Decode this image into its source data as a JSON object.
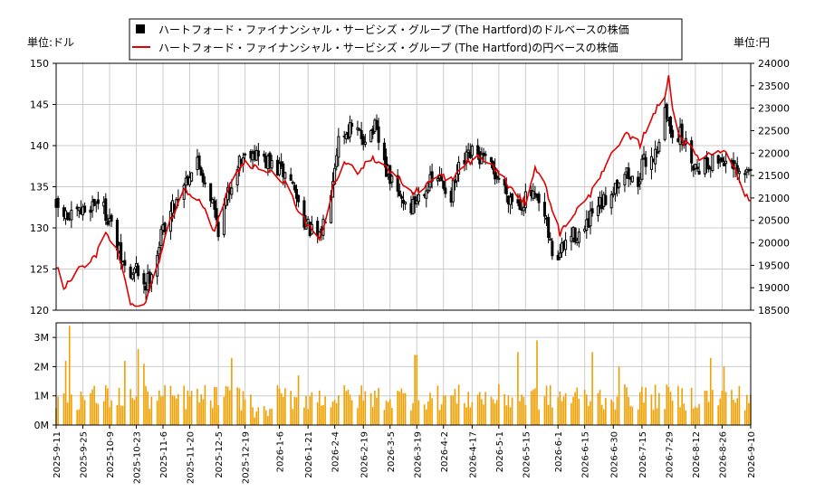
{
  "legend": [
    {
      "label": "ハートフォード・ファイナンシャル・サービシズ・グループ (The Hartford)のドルベースの株価",
      "color": "#000000",
      "marker": "square"
    },
    {
      "label": "ハートフォード・ファイナンシャル・サービシズ・グループ (The Hartford)の円ベースの株価",
      "color": "#e00000",
      "marker": "line"
    }
  ],
  "chart_data": [
    {
      "type": "candlestick+line",
      "left_unit_label": "単位:ドル",
      "right_unit_label": "単位:円",
      "y_left_range": [
        120,
        150
      ],
      "y_left_ticks": [
        120,
        125,
        130,
        135,
        140,
        145,
        150
      ],
      "y_right_range": [
        18500,
        24000
      ],
      "y_right_ticks": [
        18500,
        19000,
        19500,
        20000,
        20500,
        21000,
        21500,
        22000,
        22500,
        23000,
        23500,
        24000
      ],
      "grid": true,
      "usd_anchors": [
        [
          "2025-09-11",
          132.5
        ],
        [
          "2025-09-18",
          131.0
        ],
        [
          "2025-09-25",
          132.0
        ],
        [
          "2025-10-03",
          133.5
        ],
        [
          "2025-10-09",
          131.0
        ],
        [
          "2025-10-15",
          126.0
        ],
        [
          "2025-10-20",
          124.0
        ],
        [
          "2025-10-23",
          125.0
        ],
        [
          "2025-10-28",
          123.0
        ],
        [
          "2025-11-03",
          127.0
        ],
        [
          "2025-11-06",
          130.0
        ],
        [
          "2025-11-12",
          133.0
        ],
        [
          "2025-11-18",
          136.0
        ],
        [
          "2025-11-24",
          138.0
        ],
        [
          "2025-12-01",
          134.0
        ],
        [
          "2025-12-05",
          130.0
        ],
        [
          "2025-12-10",
          134.0
        ],
        [
          "2025-12-15",
          138.0
        ],
        [
          "2025-12-22",
          139.5
        ],
        [
          "2025-12-30",
          138.0
        ],
        [
          "2026-01-06",
          137.0
        ],
        [
          "2026-01-12",
          136.0
        ],
        [
          "2026-01-16",
          133.0
        ],
        [
          "2026-01-21",
          130.0
        ],
        [
          "2026-01-27",
          128.5
        ],
        [
          "2026-02-02",
          135.0
        ],
        [
          "2026-02-06",
          141.0
        ],
        [
          "2026-02-12",
          142.0
        ],
        [
          "2026-02-19",
          141.0
        ],
        [
          "2026-02-25",
          142.0
        ],
        [
          "2026-03-03",
          137.0
        ],
        [
          "2026-03-09",
          134.0
        ],
        [
          "2026-03-16",
          132.5
        ],
        [
          "2026-03-23",
          135.0
        ],
        [
          "2026-03-30",
          136.0
        ],
        [
          "2026-04-06",
          134.0
        ],
        [
          "2026-04-10",
          137.0
        ],
        [
          "2026-04-17",
          139.0
        ],
        [
          "2026-04-24",
          138.0
        ],
        [
          "2026-05-01",
          136.0
        ],
        [
          "2026-05-06",
          134.0
        ],
        [
          "2026-05-12",
          133.0
        ],
        [
          "2026-05-18",
          134.0
        ],
        [
          "2026-05-24",
          132.0
        ],
        [
          "2026-05-29",
          127.0
        ],
        [
          "2026-06-01",
          126.5
        ],
        [
          "2026-06-07",
          129.0
        ],
        [
          "2026-06-15",
          129.5
        ],
        [
          "2026-06-20",
          132.0
        ],
        [
          "2026-06-25",
          133.0
        ],
        [
          "2026-06-30",
          135.0
        ],
        [
          "2026-07-06",
          137.0
        ],
        [
          "2026-07-12",
          135.0
        ],
        [
          "2026-07-16",
          138.0
        ],
        [
          "2026-07-22",
          139.0
        ],
        [
          "2026-07-27",
          144.0
        ],
        [
          "2026-07-30",
          142.0
        ],
        [
          "2026-08-05",
          141.0
        ],
        [
          "2026-08-12",
          137.5
        ],
        [
          "2026-08-20",
          138.0
        ],
        [
          "2026-08-26",
          138.5
        ],
        [
          "2026-09-01",
          137.0
        ],
        [
          "2026-09-06",
          136.0
        ],
        [
          "2026-09-10",
          137.5
        ]
      ],
      "jpy_anchors": [
        [
          "2025-09-11",
          19500
        ],
        [
          "2025-09-15",
          19000
        ],
        [
          "2025-09-20",
          19300
        ],
        [
          "2025-10-01",
          19650
        ],
        [
          "2025-10-07",
          20200
        ],
        [
          "2025-10-13",
          19900
        ],
        [
          "2025-10-20",
          18600
        ],
        [
          "2025-10-28",
          18700
        ],
        [
          "2025-11-03",
          19500
        ],
        [
          "2025-11-10",
          20500
        ],
        [
          "2025-11-17",
          21200
        ],
        [
          "2025-11-25",
          21000
        ],
        [
          "2025-12-03",
          20200
        ],
        [
          "2025-12-10",
          21200
        ],
        [
          "2025-12-18",
          21800
        ],
        [
          "2025-12-30",
          21600
        ],
        [
          "2026-01-08",
          21400
        ],
        [
          "2026-01-16",
          20700
        ],
        [
          "2026-01-27",
          20000
        ],
        [
          "2026-02-03",
          21200
        ],
        [
          "2026-02-09",
          21800
        ],
        [
          "2026-02-16",
          21600
        ],
        [
          "2026-02-23",
          21900
        ],
        [
          "2026-03-03",
          21700
        ],
        [
          "2026-03-10",
          21400
        ],
        [
          "2026-03-17",
          21100
        ],
        [
          "2026-03-24",
          21300
        ],
        [
          "2026-03-31",
          21500
        ],
        [
          "2026-04-07",
          21400
        ],
        [
          "2026-04-14",
          21800
        ],
        [
          "2026-04-21",
          21900
        ],
        [
          "2026-04-28",
          21700
        ],
        [
          "2026-05-04",
          21400
        ],
        [
          "2026-05-11",
          21000
        ],
        [
          "2026-05-15",
          20900
        ],
        [
          "2026-05-20",
          21700
        ],
        [
          "2026-05-26",
          21200
        ],
        [
          "2026-06-02",
          20200
        ],
        [
          "2026-06-10",
          20700
        ],
        [
          "2026-06-17",
          21000
        ],
        [
          "2026-06-24",
          21600
        ],
        [
          "2026-06-30",
          22000
        ],
        [
          "2026-07-07",
          22400
        ],
        [
          "2026-07-14",
          22200
        ],
        [
          "2026-07-21",
          22900
        ],
        [
          "2026-07-27",
          23200
        ],
        [
          "2026-07-29",
          23800
        ],
        [
          "2026-08-01",
          22600
        ],
        [
          "2026-08-07",
          22200
        ],
        [
          "2026-08-14",
          21900
        ],
        [
          "2026-08-21",
          22000
        ],
        [
          "2026-08-28",
          22100
        ],
        [
          "2026-09-03",
          21500
        ],
        [
          "2026-09-08",
          21000
        ],
        [
          "2026-09-10",
          20900
        ]
      ],
      "volume": {
        "y_range": [
          0,
          3500000
        ],
        "y_ticks": [
          {
            "value": 0,
            "label": "0M"
          },
          {
            "value": 1000000,
            "label": "1M"
          },
          {
            "value": 2000000,
            "label": "2M"
          },
          {
            "value": 3000000,
            "label": "3M"
          }
        ],
        "bar_color": "#f0a000",
        "spikes": [
          [
            "2025-09-18",
            3400000
          ],
          [
            "2025-09-16",
            2200000
          ],
          [
            "2025-10-17",
            2200000
          ],
          [
            "2025-10-24",
            2600000
          ],
          [
            "2025-10-27",
            2100000
          ],
          [
            "2025-12-12",
            2300000
          ],
          [
            "2026-01-16",
            1700000
          ],
          [
            "2026-03-18",
            2400000
          ],
          [
            "2026-03-19",
            2400000
          ],
          [
            "2026-05-11",
            2500000
          ],
          [
            "2026-05-21",
            2900000
          ],
          [
            "2026-06-19",
            2500000
          ],
          [
            "2026-07-03",
            2000000
          ],
          [
            "2026-07-25",
            2100000
          ],
          [
            "2026-08-20",
            2300000
          ],
          [
            "2026-08-27",
            2000000
          ]
        ]
      },
      "x_tick_labels": [
        "2025-9-11",
        "2025-9-25",
        "2025-10-9",
        "2025-10-23",
        "2025-11-6",
        "2025-11-20",
        "2025-12-5",
        "2025-12-19",
        "2026-1-6",
        "2026-1-21",
        "2026-2-4",
        "2026-2-19",
        "2026-3-5",
        "2026-3-19",
        "2026-4-2",
        "2026-4-17",
        "2026-5-1",
        "2026-5-15",
        "2026-6-1",
        "2026-6-15",
        "2026-6-30",
        "2026-7-15",
        "2026-7-29",
        "2026-8-12",
        "2026-8-26",
        "2026-9-10"
      ]
    }
  ]
}
